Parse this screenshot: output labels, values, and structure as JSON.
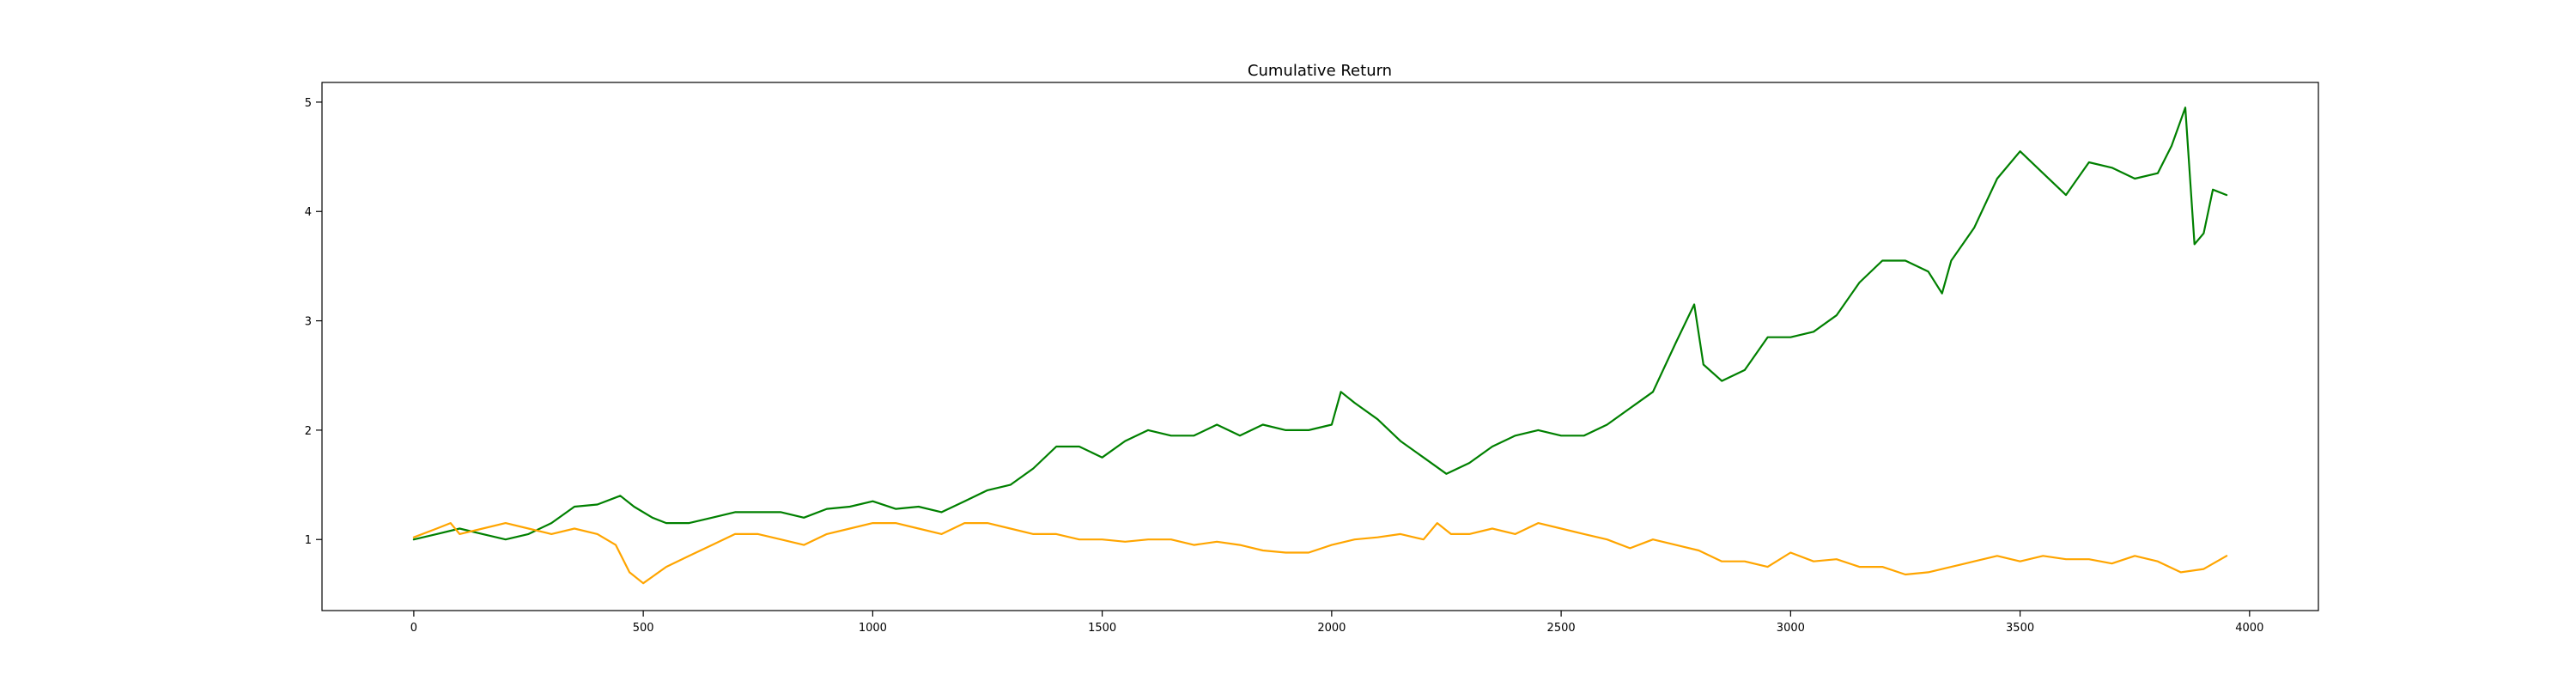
{
  "chart_data": {
    "type": "line",
    "title": "Cumulative Return",
    "xlabel": "",
    "ylabel": "",
    "xlim": [
      -200,
      4150
    ],
    "ylim": [
      0.35,
      5.18
    ],
    "grid": false,
    "xticks": [
      0,
      500,
      1000,
      1500,
      2000,
      2500,
      3000,
      3500,
      4000
    ],
    "yticks": [
      1,
      2,
      3,
      4,
      5
    ],
    "series": [
      {
        "color": "#008000",
        "x": [
          0,
          50,
          100,
          150,
          200,
          250,
          300,
          350,
          400,
          450,
          480,
          520,
          550,
          600,
          650,
          700,
          750,
          800,
          850,
          900,
          950,
          1000,
          1050,
          1100,
          1150,
          1200,
          1250,
          1300,
          1350,
          1400,
          1450,
          1500,
          1550,
          1600,
          1650,
          1700,
          1750,
          1800,
          1850,
          1900,
          1950,
          2000,
          2020,
          2050,
          2100,
          2150,
          2200,
          2250,
          2300,
          2350,
          2400,
          2450,
          2500,
          2550,
          2600,
          2650,
          2700,
          2750,
          2790,
          2810,
          2850,
          2900,
          2950,
          3000,
          3050,
          3100,
          3150,
          3200,
          3250,
          3300,
          3330,
          3350,
          3400,
          3450,
          3500,
          3550,
          3600,
          3650,
          3700,
          3750,
          3800,
          3830,
          3860,
          3880,
          3900,
          3920,
          3950
        ],
        "y": [
          1.0,
          1.05,
          1.1,
          1.05,
          1.0,
          1.05,
          1.15,
          1.3,
          1.32,
          1.4,
          1.3,
          1.2,
          1.15,
          1.15,
          1.2,
          1.25,
          1.25,
          1.25,
          1.2,
          1.28,
          1.3,
          1.35,
          1.28,
          1.3,
          1.25,
          1.35,
          1.45,
          1.5,
          1.65,
          1.85,
          1.85,
          1.75,
          1.9,
          2.0,
          1.95,
          1.95,
          2.05,
          1.95,
          2.05,
          2.0,
          2.0,
          2.05,
          2.35,
          2.25,
          2.1,
          1.9,
          1.75,
          1.6,
          1.7,
          1.85,
          1.95,
          2.0,
          1.95,
          1.95,
          2.05,
          2.2,
          2.35,
          2.8,
          3.15,
          2.6,
          2.45,
          2.55,
          2.85,
          2.85,
          2.9,
          3.05,
          3.35,
          3.55,
          3.55,
          3.45,
          3.25,
          3.55,
          3.85,
          4.3,
          4.55,
          4.35,
          4.15,
          4.45,
          4.4,
          4.3,
          4.35,
          4.6,
          4.95,
          3.7,
          3.8,
          4.2,
          4.15
        ]
      },
      {
        "color": "#ffa500",
        "x": [
          0,
          50,
          80,
          100,
          150,
          200,
          250,
          300,
          350,
          400,
          440,
          470,
          500,
          550,
          600,
          650,
          700,
          750,
          800,
          850,
          900,
          950,
          1000,
          1050,
          1100,
          1150,
          1200,
          1250,
          1300,
          1350,
          1400,
          1450,
          1500,
          1550,
          1600,
          1650,
          1700,
          1750,
          1800,
          1850,
          1900,
          1950,
          2000,
          2050,
          2100,
          2150,
          2200,
          2230,
          2260,
          2300,
          2350,
          2400,
          2450,
          2500,
          2550,
          2600,
          2650,
          2700,
          2750,
          2800,
          2850,
          2900,
          2950,
          3000,
          3050,
          3100,
          3150,
          3200,
          3250,
          3300,
          3350,
          3400,
          3450,
          3500,
          3550,
          3600,
          3650,
          3700,
          3750,
          3800,
          3850,
          3900,
          3950
        ],
        "y": [
          1.02,
          1.1,
          1.15,
          1.05,
          1.1,
          1.15,
          1.1,
          1.05,
          1.1,
          1.05,
          0.95,
          0.7,
          0.6,
          0.75,
          0.85,
          0.95,
          1.05,
          1.05,
          1.0,
          0.95,
          1.05,
          1.1,
          1.15,
          1.15,
          1.1,
          1.05,
          1.15,
          1.15,
          1.1,
          1.05,
          1.05,
          1.0,
          1.0,
          0.98,
          1.0,
          1.0,
          0.95,
          0.98,
          0.95,
          0.9,
          0.88,
          0.88,
          0.95,
          1.0,
          1.02,
          1.05,
          1.0,
          1.15,
          1.05,
          1.05,
          1.1,
          1.05,
          1.15,
          1.1,
          1.05,
          1.0,
          0.92,
          1.0,
          0.95,
          0.9,
          0.8,
          0.8,
          0.75,
          0.88,
          0.8,
          0.82,
          0.75,
          0.75,
          0.68,
          0.7,
          0.75,
          0.8,
          0.85,
          0.8,
          0.85,
          0.82,
          0.82,
          0.78,
          0.85,
          0.8,
          0.7,
          0.73,
          0.85
        ]
      }
    ]
  }
}
